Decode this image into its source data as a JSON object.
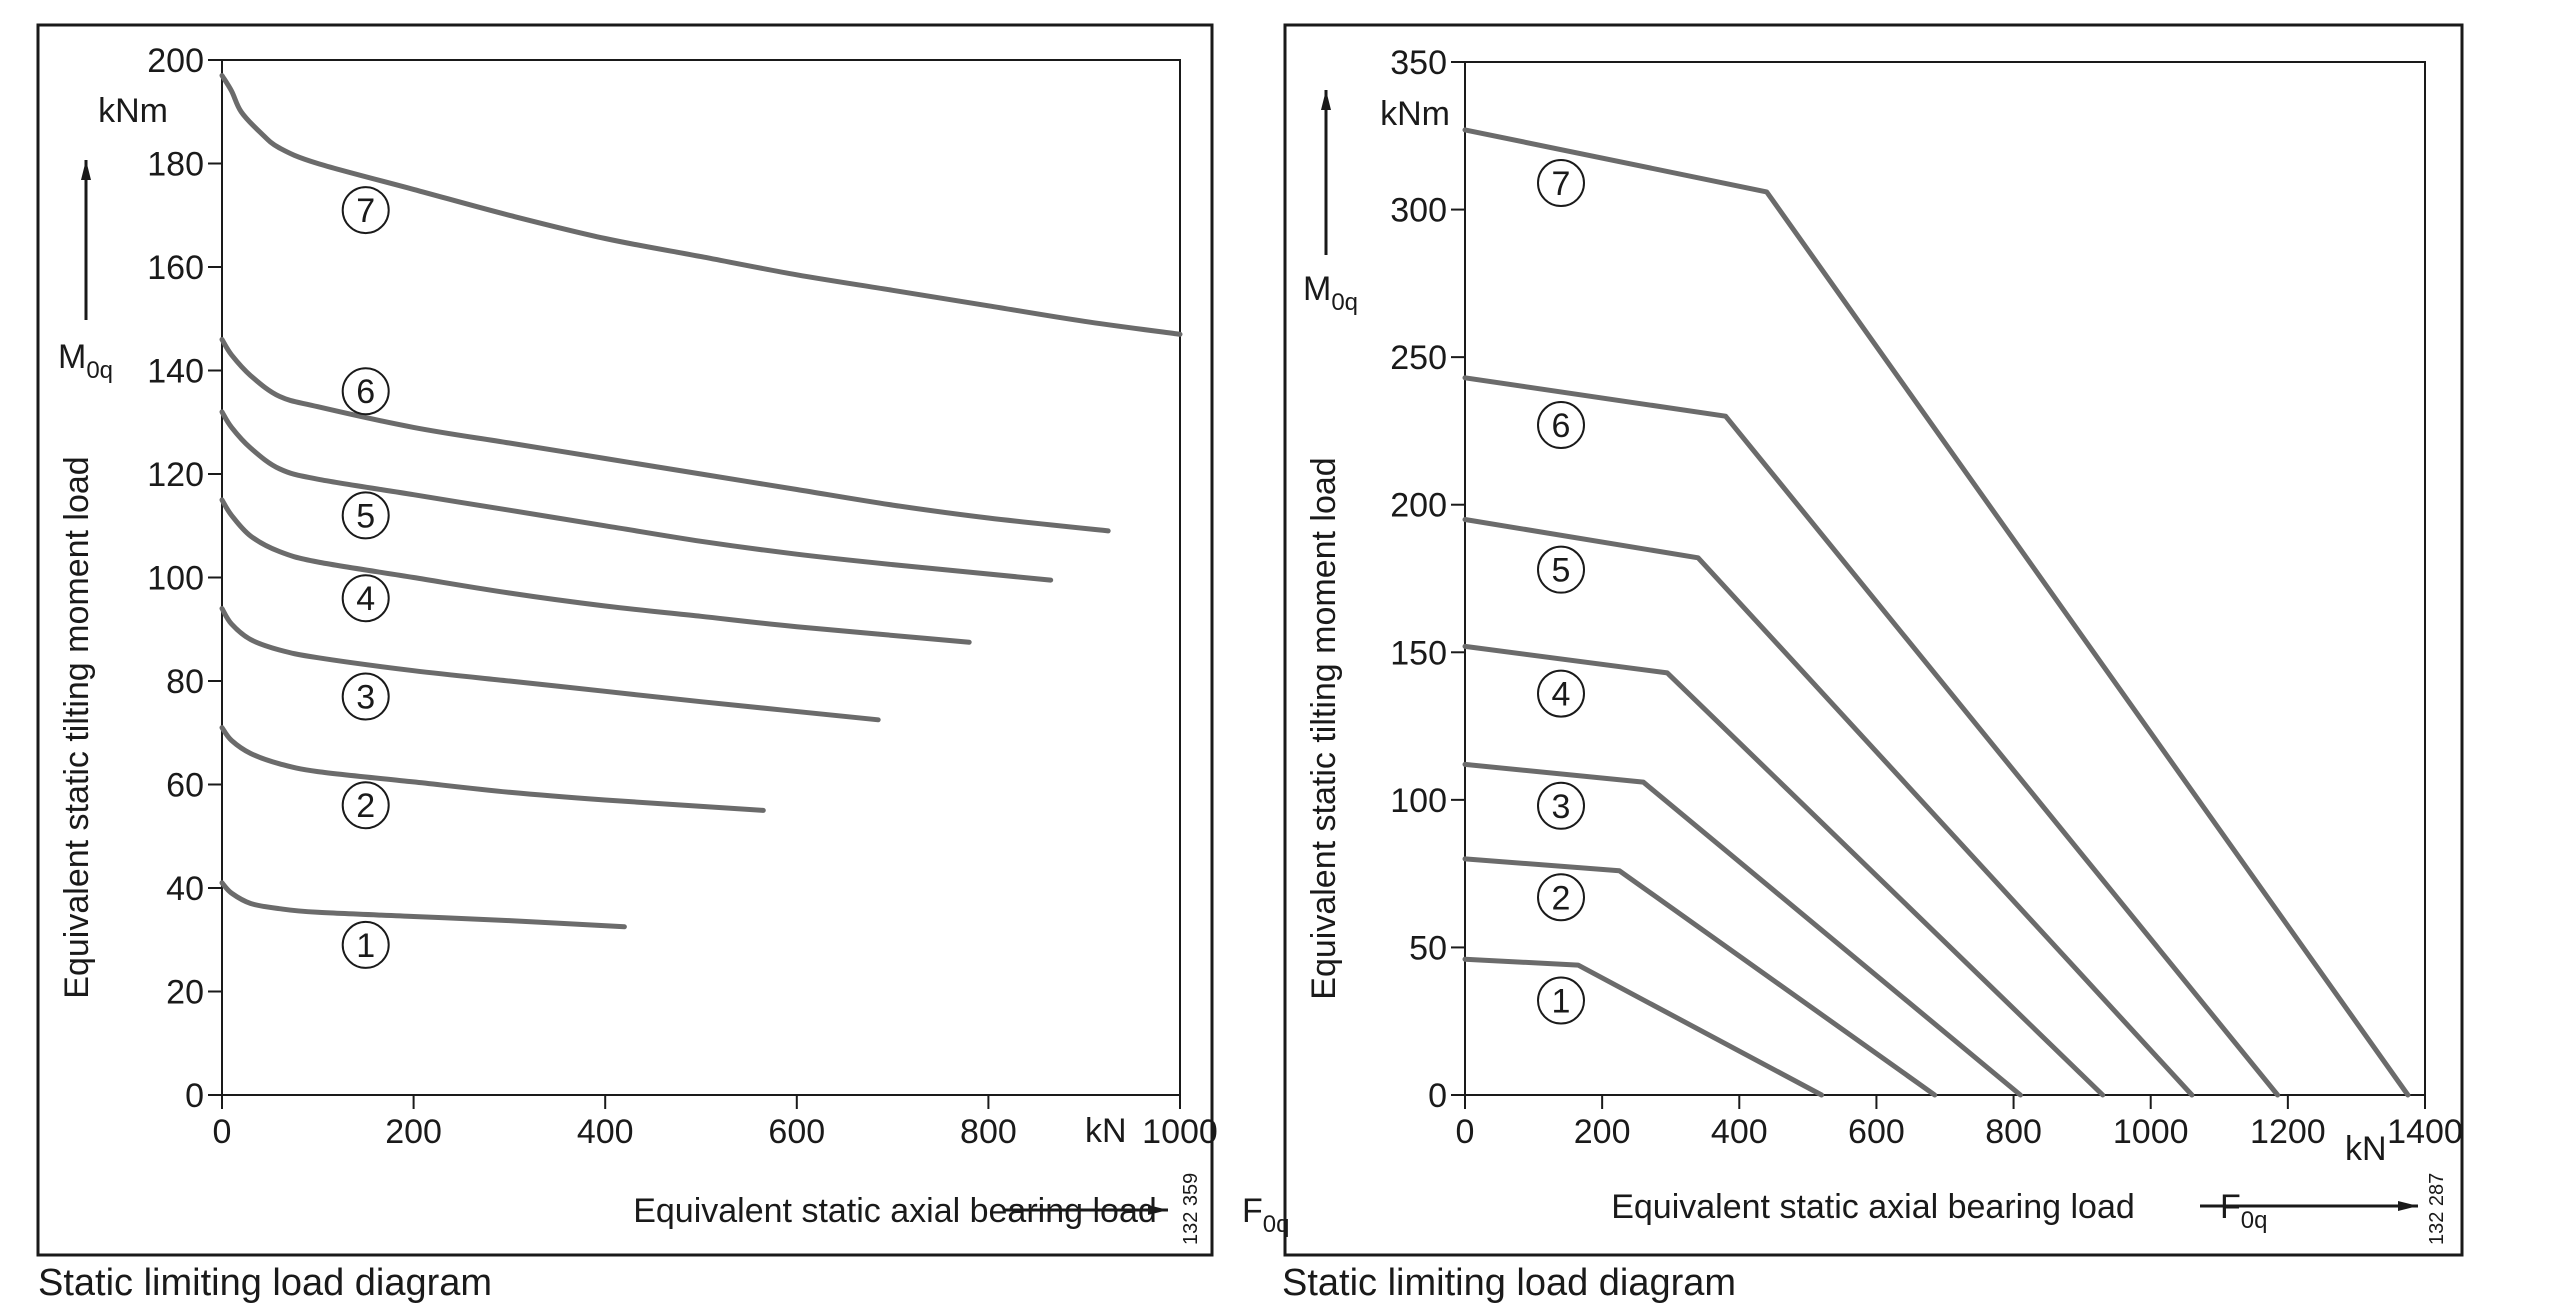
{
  "chart_data": [
    {
      "type": "line",
      "title": "",
      "caption": "Static limiting load diagram",
      "xlabel": "Equivalent static axial bearing load",
      "xsymbol": {
        "base": "F",
        "sub": "0q"
      },
      "xunit": "kN",
      "ylabel": "Equivalent static tilting moment load",
      "ysymbol": {
        "base": "M",
        "sub": "0q"
      },
      "yunit": "kNm",
      "xlim": [
        0,
        1000
      ],
      "ylim": [
        0,
        200
      ],
      "xticks": [
        "0",
        "200",
        "400",
        "600",
        "800",
        "1000"
      ],
      "yticks": [
        "0",
        "20",
        "40",
        "60",
        "80",
        "100",
        "120",
        "140",
        "160",
        "180",
        "200"
      ],
      "code": "132 359",
      "grid": false,
      "series": [
        {
          "label": "1",
          "label_at": [
            150,
            29
          ],
          "points": [
            [
              0,
              41
            ],
            [
              10,
              39
            ],
            [
              30,
              37
            ],
            [
              60,
              36
            ],
            [
              100,
              35.3
            ],
            [
              200,
              34.5
            ],
            [
              300,
              33.7
            ],
            [
              420,
              32.5
            ]
          ]
        },
        {
          "label": "2",
          "label_at": [
            150,
            56
          ],
          "points": [
            [
              0,
              71
            ],
            [
              10,
              68.5
            ],
            [
              30,
              66
            ],
            [
              60,
              64
            ],
            [
              100,
              62.5
            ],
            [
              200,
              60.5
            ],
            [
              300,
              58.5
            ],
            [
              400,
              57
            ],
            [
              565,
              55
            ]
          ]
        },
        {
          "label": "3",
          "label_at": [
            150,
            77
          ],
          "points": [
            [
              0,
              94
            ],
            [
              10,
              91
            ],
            [
              30,
              88
            ],
            [
              60,
              86
            ],
            [
              100,
              84.5
            ],
            [
              200,
              82
            ],
            [
              300,
              80
            ],
            [
              400,
              78
            ],
            [
              500,
              76
            ],
            [
              685,
              72.5
            ]
          ]
        },
        {
          "label": "4",
          "label_at": [
            150,
            96
          ],
          "points": [
            [
              0,
              115
            ],
            [
              10,
              112
            ],
            [
              30,
              108
            ],
            [
              60,
              105
            ],
            [
              100,
              103
            ],
            [
              200,
              100
            ],
            [
              300,
              97
            ],
            [
              400,
              94.5
            ],
            [
              500,
              92.5
            ],
            [
              600,
              90.5
            ],
            [
              780,
              87.5
            ]
          ]
        },
        {
          "label": "5",
          "label_at": [
            150,
            112
          ],
          "points": [
            [
              0,
              132
            ],
            [
              10,
              129
            ],
            [
              30,
              125
            ],
            [
              60,
              121
            ],
            [
              100,
              119
            ],
            [
              200,
              116
            ],
            [
              300,
              113
            ],
            [
              400,
              110
            ],
            [
              500,
              107
            ],
            [
              600,
              104.5
            ],
            [
              700,
              102.5
            ],
            [
              865,
              99.5
            ]
          ]
        },
        {
          "label": "6",
          "label_at": [
            150,
            136
          ],
          "points": [
            [
              0,
              146
            ],
            [
              10,
              143
            ],
            [
              30,
              139
            ],
            [
              60,
              135
            ],
            [
              100,
              133
            ],
            [
              200,
              129
            ],
            [
              300,
              126
            ],
            [
              400,
              123
            ],
            [
              500,
              120
            ],
            [
              600,
              117
            ],
            [
              700,
              114
            ],
            [
              800,
              111.5
            ],
            [
              925,
              109
            ]
          ]
        },
        {
          "label": "7",
          "label_at": [
            150,
            171
          ],
          "points": [
            [
              0,
              197
            ],
            [
              10,
              194
            ],
            [
              20,
              190
            ],
            [
              40,
              186
            ],
            [
              60,
              183
            ],
            [
              100,
              180
            ],
            [
              200,
              175
            ],
            [
              300,
              170
            ],
            [
              400,
              165.5
            ],
            [
              500,
              162
            ],
            [
              600,
              158.5
            ],
            [
              700,
              155.5
            ],
            [
              800,
              152.5
            ],
            [
              900,
              149.5
            ],
            [
              1000,
              147
            ]
          ]
        }
      ]
    },
    {
      "type": "line",
      "title": "",
      "caption": "Static limiting load diagram",
      "xlabel": "Equivalent static axial bearing load",
      "xsymbol": {
        "base": "F",
        "sub": "0q"
      },
      "xunit": "kN",
      "ylabel": "Equivalent static tilting moment load",
      "ysymbol": {
        "base": "M",
        "sub": "0q"
      },
      "yunit": "kNm",
      "xlim": [
        0,
        1400
      ],
      "ylim": [
        0,
        350
      ],
      "xticks": [
        "0",
        "200",
        "400",
        "600",
        "800",
        "1000",
        "1200",
        "1400"
      ],
      "yticks": [
        "0",
        "50",
        "100",
        "150",
        "200",
        "250",
        "300",
        "350"
      ],
      "code": "132 287",
      "grid": false,
      "series": [
        {
          "label": "1",
          "label_at": [
            140,
            32
          ],
          "points": [
            [
              0,
              46
            ],
            [
              165,
              44
            ],
            [
              520,
              0
            ]
          ]
        },
        {
          "label": "2",
          "label_at": [
            140,
            67
          ],
          "points": [
            [
              0,
              80
            ],
            [
              225,
              76
            ],
            [
              685,
              0
            ]
          ]
        },
        {
          "label": "3",
          "label_at": [
            140,
            98
          ],
          "points": [
            [
              0,
              112
            ],
            [
              260,
              106
            ],
            [
              810,
              0
            ]
          ]
        },
        {
          "label": "4",
          "label_at": [
            140,
            136
          ],
          "points": [
            [
              0,
              152
            ],
            [
              295,
              143
            ],
            [
              930,
              0
            ]
          ]
        },
        {
          "label": "5",
          "label_at": [
            140,
            178
          ],
          "points": [
            [
              0,
              195
            ],
            [
              340,
              182
            ],
            [
              1060,
              0
            ]
          ]
        },
        {
          "label": "6",
          "label_at": [
            140,
            227
          ],
          "points": [
            [
              0,
              243
            ],
            [
              380,
              230
            ],
            [
              1185,
              0
            ]
          ]
        },
        {
          "label": "7",
          "label_at": [
            140,
            309
          ],
          "points": [
            [
              0,
              327
            ],
            [
              440,
              306
            ],
            [
              1375,
              0
            ]
          ]
        }
      ]
    }
  ]
}
